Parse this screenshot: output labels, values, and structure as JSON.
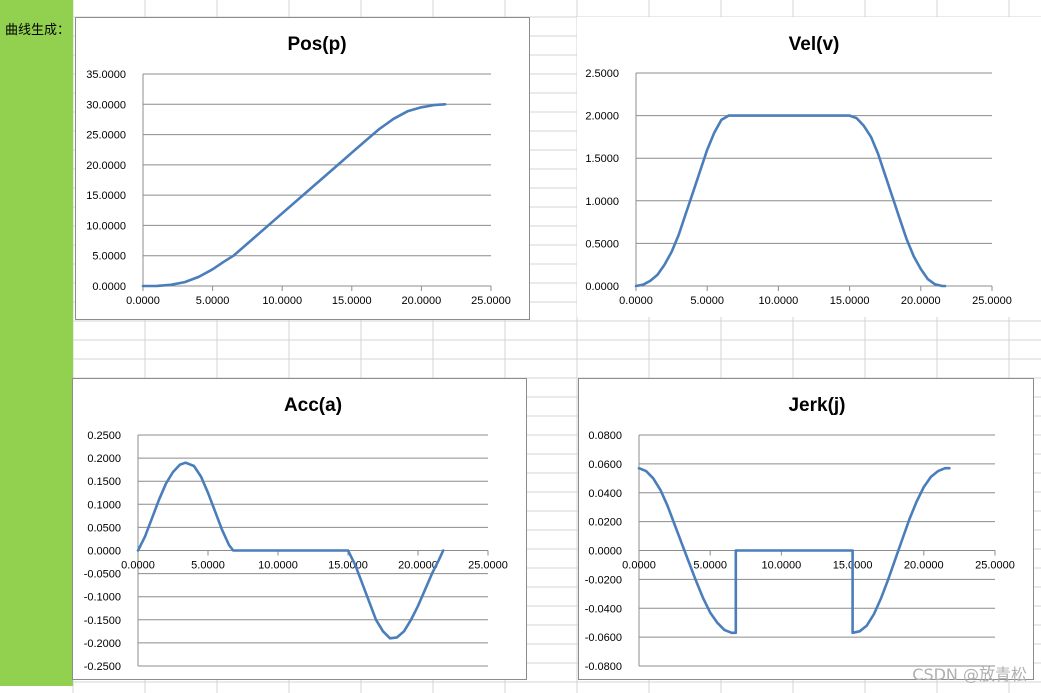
{
  "sheet": {
    "cell_label": "曲线生成：",
    "accent_color": "#92d050",
    "gridline_color": "#d4d4d4"
  },
  "watermark": "CSDN @放青松",
  "chart_data": [
    {
      "type": "line",
      "title": "Pos(p)",
      "xlabel": "",
      "ylabel": "",
      "xlim": [
        0,
        25
      ],
      "ylim": [
        0,
        35
      ],
      "x_ticks": [
        "0.0000",
        "5.0000",
        "10.0000",
        "15.0000",
        "20.0000",
        "25.0000"
      ],
      "y_ticks": [
        "0.0000",
        "5.0000",
        "10.0000",
        "15.0000",
        "20.0000",
        "25.0000",
        "30.0000",
        "35.0000"
      ],
      "grid": true,
      "legend": "none",
      "color": "#4a7ebb",
      "series": [
        {
          "x": [
            0,
            1,
            2,
            3,
            4,
            5,
            5.8,
            6.5,
            8,
            10,
            12,
            14,
            15,
            16,
            17,
            18,
            19,
            20,
            21,
            21.7
          ],
          "values": [
            0,
            0.02,
            0.2,
            0.65,
            1.5,
            2.75,
            4.0,
            5.0,
            8.0,
            12.0,
            16.0,
            20.0,
            22.0,
            24.0,
            25.95,
            27.6,
            28.85,
            29.5,
            29.9,
            30.0
          ]
        }
      ]
    },
    {
      "type": "line",
      "title": "Vel(v)",
      "xlabel": "",
      "ylabel": "",
      "xlim": [
        0,
        25
      ],
      "ylim": [
        0,
        2.5
      ],
      "x_ticks": [
        "0.0000",
        "5.0000",
        "10.0000",
        "15.0000",
        "20.0000",
        "25.0000"
      ],
      "y_ticks": [
        "0.0000",
        "0.5000",
        "1.0000",
        "1.5000",
        "2.0000",
        "2.5000"
      ],
      "grid": true,
      "legend": "none",
      "color": "#4a7ebb",
      "series": [
        {
          "x": [
            0,
            0.5,
            1,
            1.5,
            2,
            2.5,
            3,
            3.5,
            4,
            4.5,
            5,
            5.5,
            6,
            6.5,
            7,
            15,
            15.5,
            16,
            16.5,
            17,
            17.5,
            18,
            18.5,
            19,
            19.5,
            20,
            20.5,
            21,
            21.5,
            21.7
          ],
          "values": [
            0,
            0.015,
            0.06,
            0.13,
            0.25,
            0.4,
            0.6,
            0.85,
            1.1,
            1.35,
            1.6,
            1.8,
            1.95,
            2.0,
            2.0,
            2.0,
            1.97,
            1.88,
            1.75,
            1.55,
            1.3,
            1.05,
            0.8,
            0.55,
            0.35,
            0.2,
            0.08,
            0.02,
            0.0,
            0.0
          ]
        }
      ]
    },
    {
      "type": "line",
      "title": "Acc(a)",
      "xlabel": "",
      "ylabel": "",
      "xlim": [
        0,
        25
      ],
      "ylim": [
        -0.25,
        0.25
      ],
      "x_ticks": [
        "0.0000",
        "5.0000",
        "10.0000",
        "15.0000",
        "20.0000",
        "25.0000"
      ],
      "y_ticks": [
        "-0.2500",
        "-0.2000",
        "-0.1500",
        "-0.1000",
        "-0.0500",
        "0.0000",
        "0.0500",
        "0.1000",
        "0.1500",
        "0.2000",
        "0.2500"
      ],
      "grid": true,
      "legend": "none",
      "color": "#4a7ebb",
      "series": [
        {
          "x": [
            0,
            0.5,
            1,
            1.5,
            2,
            2.5,
            3,
            3.4,
            4,
            4.5,
            5,
            5.5,
            6,
            6.5,
            6.8,
            15,
            15.5,
            16,
            16.5,
            17,
            17.5,
            18,
            18.5,
            19,
            19.5,
            20,
            20.5,
            21,
            21.5,
            21.8
          ],
          "values": [
            0,
            0.03,
            0.07,
            0.11,
            0.145,
            0.17,
            0.186,
            0.19,
            0.183,
            0.16,
            0.125,
            0.085,
            0.045,
            0.012,
            0,
            0,
            -0.03,
            -0.07,
            -0.11,
            -0.15,
            -0.175,
            -0.19,
            -0.188,
            -0.175,
            -0.15,
            -0.12,
            -0.085,
            -0.05,
            -0.02,
            0
          ]
        }
      ]
    },
    {
      "type": "line",
      "title": "Jerk(j)",
      "xlabel": "",
      "ylabel": "",
      "xlim": [
        0,
        25
      ],
      "ylim": [
        -0.08,
        0.08
      ],
      "x_ticks": [
        "0.0000",
        "5.0000",
        "10.0000",
        "15.0000",
        "20.0000",
        "25.0000"
      ],
      "y_ticks": [
        "-0.0800",
        "-0.0600",
        "-0.0400",
        "-0.0200",
        "0.0000",
        "0.0200",
        "0.0400",
        "0.0600",
        "0.0800"
      ],
      "grid": true,
      "legend": "none",
      "color": "#4a7ebb",
      "series": [
        {
          "x": [
            0,
            0.5,
            1,
            1.5,
            2,
            2.5,
            3,
            3.5,
            4,
            4.5,
            5,
            5.5,
            6,
            6.5,
            6.8,
            6.8,
            15,
            15,
            15.5,
            16,
            16.5,
            17,
            17.5,
            18,
            18.5,
            19,
            19.5,
            20,
            20.5,
            21,
            21.5,
            21.8
          ],
          "values": [
            0.057,
            0.055,
            0.05,
            0.042,
            0.031,
            0.018,
            0.005,
            -0.008,
            -0.021,
            -0.033,
            -0.043,
            -0.05,
            -0.055,
            -0.057,
            -0.057,
            0,
            0,
            -0.057,
            -0.056,
            -0.052,
            -0.044,
            -0.033,
            -0.02,
            -0.006,
            0.008,
            0.022,
            0.034,
            0.044,
            0.051,
            0.055,
            0.057,
            0.057
          ]
        }
      ]
    }
  ]
}
